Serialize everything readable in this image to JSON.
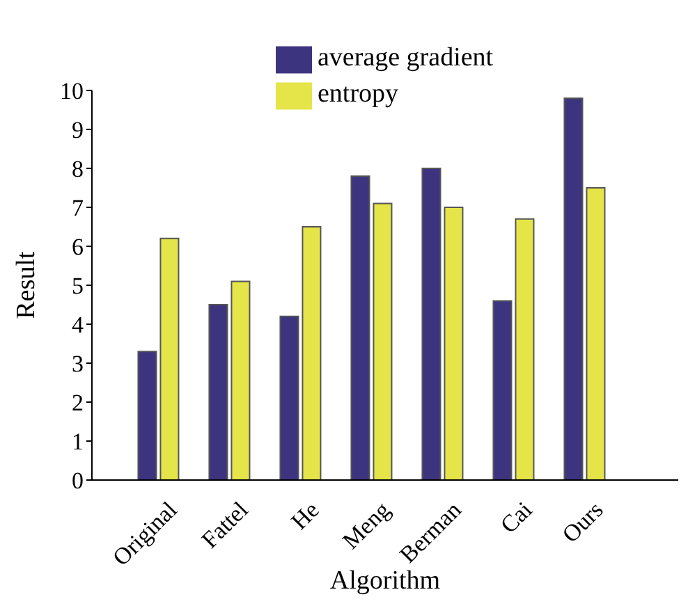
{
  "chart_data": {
    "type": "bar",
    "xlabel": "Algorithm",
    "ylabel": "Result",
    "categories": [
      "Original",
      "Fattel",
      "He",
      "Meng",
      "Berman",
      "Cai",
      "Ours"
    ],
    "series": [
      {
        "name": "average gradient",
        "color": "#3d3480",
        "values": [
          3.3,
          4.5,
          4.2,
          7.8,
          8.0,
          4.6,
          9.8
        ]
      },
      {
        "name": "entropy",
        "color": "#e5e54a",
        "values": [
          6.2,
          5.1,
          6.5,
          7.1,
          7.0,
          6.7,
          7.5
        ]
      }
    ],
    "ylim": [
      0,
      10
    ],
    "yticks": [
      0,
      1,
      2,
      3,
      4,
      5,
      6,
      7,
      8,
      9,
      10
    ],
    "grid": false,
    "legend": "top"
  }
}
